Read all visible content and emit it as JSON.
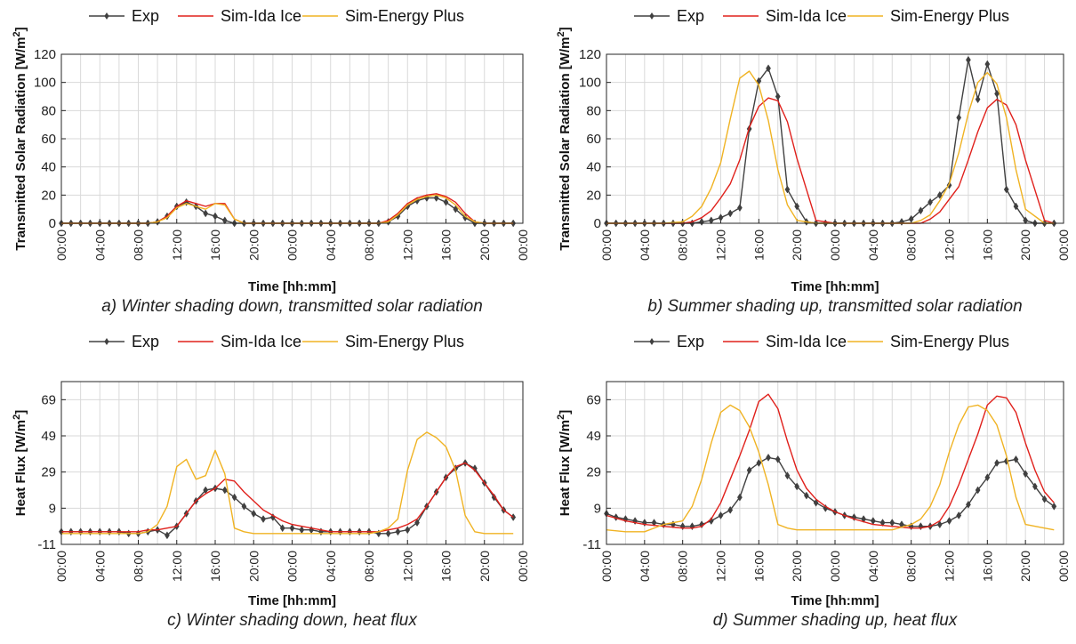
{
  "legend": {
    "exp": "Exp",
    "ida": "Sim-Ida Ice",
    "ep": "Sim-Energy Plus"
  },
  "colors": {
    "exp": "#404040",
    "ida": "#e0201b",
    "ep": "#f0b323",
    "grid": "#d9d9d9",
    "axis": "#262626"
  },
  "xlabel": "Time [hh:mm]",
  "x_tick_labels": [
    "00:00",
    "04:00",
    "08:00",
    "12:00",
    "16:00",
    "20:00",
    "00:00",
    "04:00",
    "08:00",
    "12:00",
    "16:00",
    "20:00",
    "00:00"
  ],
  "chart_data": [
    {
      "type": "line",
      "caption": "a) Winter shading down, transmitted solar radiation",
      "xlabel": "Time [hh:mm]",
      "ylabel_main": "Transmitted Solar Radiation [W/m",
      "ylabel_sup": "2",
      "ylabel_end": "]",
      "xlim": [
        0,
        48
      ],
      "ylim": [
        0,
        120
      ],
      "yticks": [
        0,
        20,
        40,
        60,
        80,
        100,
        120
      ],
      "series": [
        {
          "name": "Exp",
          "key": "exp",
          "marker": true,
          "x": [
            0,
            1,
            2,
            3,
            4,
            5,
            6,
            7,
            8,
            9,
            10,
            11,
            12,
            13,
            14,
            15,
            16,
            17,
            18,
            19,
            20,
            21,
            22,
            23,
            24,
            25,
            26,
            27,
            28,
            29,
            30,
            31,
            32,
            33,
            34,
            35,
            36,
            37,
            38,
            39,
            40,
            41,
            42,
            43,
            44,
            45,
            46,
            47
          ],
          "y": [
            0,
            0,
            0,
            0,
            0,
            0,
            0,
            0,
            0,
            0,
            1,
            5,
            12,
            15,
            12,
            7,
            5,
            2,
            0,
            0,
            0,
            0,
            0,
            0,
            0,
            0,
            0,
            0,
            0,
            0,
            0,
            0,
            0,
            0,
            1,
            5,
            12,
            16,
            18,
            18,
            15,
            10,
            4,
            0,
            0,
            0,
            0,
            0
          ]
        },
        {
          "name": "Sim-Ida Ice",
          "key": "ida",
          "x": [
            0,
            2,
            4,
            6,
            8,
            9,
            10,
            11,
            12,
            13,
            14,
            15,
            16,
            17,
            18,
            19,
            20,
            22,
            24,
            26,
            28,
            30,
            32,
            33,
            34,
            35,
            36,
            37,
            38,
            39,
            40,
            41,
            42,
            43,
            44,
            46,
            47
          ],
          "y": [
            0,
            0,
            0,
            0,
            0,
            0,
            1,
            5,
            12,
            16,
            14,
            12,
            14,
            14,
            3,
            0,
            0,
            0,
            0,
            0,
            0,
            0,
            0,
            0,
            2,
            7,
            14,
            18,
            20,
            21,
            19,
            15,
            7,
            1,
            0,
            0,
            0
          ]
        },
        {
          "name": "Sim-Energy Plus",
          "key": "ep",
          "x": [
            0,
            2,
            4,
            6,
            8,
            9,
            10,
            11,
            12,
            13,
            14,
            15,
            16,
            17,
            18,
            19,
            20,
            22,
            24,
            26,
            28,
            30,
            32,
            33,
            34,
            35,
            36,
            37,
            38,
            39,
            40,
            41,
            42,
            43,
            44,
            46,
            47
          ],
          "y": [
            0,
            0,
            0,
            0,
            0,
            0,
            1,
            4,
            11,
            14,
            12,
            10,
            14,
            13,
            3,
            0,
            0,
            0,
            0,
            0,
            0,
            0,
            0,
            0,
            1,
            6,
            13,
            17,
            19,
            20,
            18,
            13,
            5,
            1,
            0,
            0,
            0
          ]
        }
      ]
    },
    {
      "type": "line",
      "caption": "b) Summer shading up, transmitted solar radiation",
      "xlabel": "Time [hh:mm]",
      "ylabel_main": "Transmitted Solar Radiation [W/m",
      "ylabel_sup": "2",
      "ylabel_end": "]",
      "xlim": [
        0,
        48
      ],
      "ylim": [
        0,
        120
      ],
      "yticks": [
        0,
        20,
        40,
        60,
        80,
        100,
        120
      ],
      "series": [
        {
          "name": "Exp",
          "key": "exp",
          "marker": true,
          "x": [
            0,
            1,
            2,
            3,
            4,
            5,
            6,
            7,
            8,
            9,
            10,
            11,
            12,
            13,
            14,
            15,
            16,
            17,
            18,
            19,
            20,
            21,
            22,
            23,
            24,
            25,
            26,
            27,
            28,
            29,
            30,
            31,
            32,
            33,
            34,
            35,
            36,
            37,
            38,
            39,
            40,
            41,
            42,
            43,
            44,
            45,
            46,
            47
          ],
          "y": [
            0,
            0,
            0,
            0,
            0,
            0,
            0,
            0,
            0,
            0,
            1,
            2,
            4,
            7,
            11,
            67,
            101,
            110,
            90,
            24,
            12,
            1,
            0,
            0,
            0,
            0,
            0,
            0,
            0,
            0,
            0,
            1,
            3,
            9,
            15,
            20,
            27,
            75,
            116,
            88,
            113,
            92,
            24,
            12,
            2,
            0,
            0,
            0
          ]
        },
        {
          "name": "Sim-Ida Ice",
          "key": "ida",
          "x": [
            0,
            2,
            4,
            6,
            8,
            9,
            10,
            11,
            12,
            13,
            14,
            15,
            16,
            17,
            18,
            19,
            20,
            22,
            24,
            26,
            28,
            30,
            32,
            33,
            34,
            35,
            36,
            37,
            38,
            39,
            40,
            41,
            42,
            43,
            44,
            46,
            47
          ],
          "y": [
            0,
            0,
            0,
            0,
            0,
            1,
            4,
            9,
            18,
            28,
            45,
            68,
            83,
            89,
            87,
            72,
            46,
            2,
            0,
            0,
            0,
            0,
            0,
            0,
            3,
            8,
            17,
            26,
            45,
            65,
            82,
            88,
            84,
            70,
            45,
            2,
            0
          ]
        },
        {
          "name": "Sim-Energy Plus",
          "key": "ep",
          "x": [
            0,
            2,
            4,
            6,
            8,
            9,
            10,
            11,
            12,
            13,
            14,
            15,
            16,
            17,
            18,
            19,
            20,
            22,
            24,
            26,
            28,
            30,
            32,
            33,
            34,
            35,
            36,
            37,
            38,
            39,
            40,
            41,
            42,
            43,
            44,
            46,
            47
          ],
          "y": [
            0,
            0,
            0,
            0,
            1,
            5,
            12,
            25,
            43,
            74,
            103,
            108,
            98,
            73,
            38,
            13,
            2,
            0,
            0,
            0,
            0,
            0,
            0,
            2,
            6,
            16,
            28,
            50,
            78,
            100,
            107,
            99,
            75,
            38,
            10,
            0,
            0
          ]
        }
      ]
    },
    {
      "type": "line",
      "caption": "c) Winter shading down, heat flux",
      "xlabel": "Time [hh:mm]",
      "ylabel_main": "Heat Flux [W/m",
      "ylabel_sup": "2",
      "ylabel_end": "]",
      "xlim": [
        0,
        48
      ],
      "ylim": [
        -11,
        79
      ],
      "yticks": [
        -11,
        9,
        29,
        49,
        69
      ],
      "series": [
        {
          "name": "Exp",
          "key": "exp",
          "marker": true,
          "x": [
            0,
            1,
            2,
            3,
            4,
            5,
            6,
            7,
            8,
            9,
            10,
            11,
            12,
            13,
            14,
            15,
            16,
            17,
            18,
            19,
            20,
            21,
            22,
            23,
            24,
            25,
            26,
            27,
            28,
            29,
            30,
            31,
            32,
            33,
            34,
            35,
            36,
            37,
            38,
            39,
            40,
            41,
            42,
            43,
            44,
            45,
            46,
            47
          ],
          "y": [
            -4,
            -4,
            -4,
            -4,
            -4,
            -4,
            -4,
            -5,
            -5,
            -4,
            -3,
            -6,
            -1,
            6,
            13,
            19,
            20,
            19,
            15,
            10,
            6,
            3,
            4,
            -2,
            -2,
            -3,
            -3,
            -4,
            -4,
            -4,
            -4,
            -4,
            -4,
            -5,
            -5,
            -4,
            -3,
            1,
            10,
            18,
            26,
            31,
            34,
            31,
            23,
            15,
            8,
            4
          ]
        },
        {
          "name": "Sim-Ida Ice",
          "key": "ida",
          "x": [
            0,
            2,
            4,
            6,
            8,
            9,
            10,
            11,
            12,
            13,
            14,
            15,
            16,
            17,
            18,
            19,
            20,
            21,
            22,
            23,
            24,
            26,
            28,
            30,
            32,
            33,
            34,
            35,
            36,
            37,
            38,
            39,
            40,
            41,
            42,
            43,
            44,
            45,
            46,
            47
          ],
          "y": [
            -4,
            -4,
            -4,
            -4,
            -4,
            -3,
            -3,
            -2,
            -1,
            6,
            13,
            17,
            20,
            25,
            24,
            18,
            13,
            8,
            5,
            2,
            0,
            -2,
            -4,
            -4,
            -4,
            -4,
            -3,
            -2,
            0,
            3,
            10,
            18,
            26,
            32,
            34,
            30,
            23,
            16,
            8,
            4
          ]
        },
        {
          "name": "Sim-Energy Plus",
          "key": "ep",
          "x": [
            0,
            2,
            4,
            6,
            8,
            9,
            10,
            11,
            12,
            13,
            14,
            15,
            16,
            17,
            18,
            19,
            20,
            22,
            24,
            26,
            28,
            30,
            32,
            33,
            34,
            35,
            36,
            37,
            38,
            39,
            40,
            41,
            42,
            43,
            44,
            46,
            47
          ],
          "y": [
            -5,
            -5,
            -5,
            -5,
            -5,
            -4,
            0,
            10,
            32,
            36,
            25,
            27,
            41,
            28,
            -2,
            -4,
            -5,
            -5,
            -5,
            -5,
            -5,
            -5,
            -5,
            -4,
            -2,
            3,
            30,
            47,
            51,
            48,
            43,
            30,
            5,
            -4,
            -5,
            -5,
            -5
          ]
        }
      ]
    },
    {
      "type": "line",
      "caption": "d) Summer shading up, heat flux",
      "xlabel": "Time [hh:mm]",
      "ylabel_main": "Heat Flux [W/m",
      "ylabel_sup": "2",
      "ylabel_end": "]",
      "xlim": [
        0,
        48
      ],
      "ylim": [
        -11,
        79
      ],
      "yticks": [
        -11,
        9,
        29,
        49,
        69
      ],
      "series": [
        {
          "name": "Exp",
          "key": "exp",
          "marker": true,
          "x": [
            0,
            1,
            2,
            3,
            4,
            5,
            6,
            7,
            8,
            9,
            10,
            11,
            12,
            13,
            14,
            15,
            16,
            17,
            18,
            19,
            20,
            21,
            22,
            23,
            24,
            25,
            26,
            27,
            28,
            29,
            30,
            31,
            32,
            33,
            34,
            35,
            36,
            37,
            38,
            39,
            40,
            41,
            42,
            43,
            44,
            45,
            46,
            47
          ],
          "y": [
            6,
            4,
            3,
            2,
            1,
            1,
            0,
            0,
            -1,
            -1,
            0,
            2,
            5,
            8,
            15,
            30,
            34,
            37,
            36,
            27,
            21,
            16,
            12,
            9,
            7,
            5,
            4,
            3,
            2,
            1,
            1,
            0,
            -1,
            -1,
            -1,
            0,
            2,
            5,
            11,
            19,
            26,
            34,
            35,
            36,
            28,
            21,
            14,
            10
          ]
        },
        {
          "name": "Sim-Ida Ice",
          "key": "ida",
          "x": [
            0,
            2,
            4,
            6,
            8,
            9,
            10,
            11,
            12,
            13,
            14,
            15,
            16,
            17,
            18,
            19,
            20,
            21,
            22,
            23,
            24,
            26,
            28,
            30,
            32,
            33,
            34,
            35,
            36,
            37,
            38,
            39,
            40,
            41,
            42,
            43,
            44,
            45,
            46,
            47
          ],
          "y": [
            5,
            2,
            0,
            -1,
            -2,
            -2,
            -1,
            3,
            12,
            25,
            38,
            52,
            68,
            72,
            64,
            46,
            30,
            20,
            14,
            10,
            7,
            3,
            0,
            -1,
            -2,
            -2,
            -1,
            2,
            10,
            22,
            36,
            50,
            66,
            71,
            70,
            62,
            45,
            30,
            18,
            12
          ]
        },
        {
          "name": "Sim-Energy Plus",
          "key": "ep",
          "x": [
            0,
            2,
            4,
            6,
            8,
            9,
            10,
            11,
            12,
            13,
            14,
            15,
            16,
            17,
            18,
            19,
            20,
            22,
            24,
            26,
            28,
            30,
            32,
            33,
            34,
            35,
            36,
            37,
            38,
            39,
            40,
            41,
            42,
            43,
            44,
            46,
            47
          ],
          "y": [
            -3,
            -4,
            -4,
            0,
            2,
            10,
            25,
            45,
            62,
            66,
            63,
            54,
            40,
            22,
            0,
            -2,
            -3,
            -3,
            -3,
            -3,
            -3,
            -3,
            0,
            3,
            10,
            22,
            40,
            55,
            65,
            66,
            63,
            55,
            38,
            15,
            0,
            -2,
            -3
          ]
        }
      ]
    }
  ]
}
